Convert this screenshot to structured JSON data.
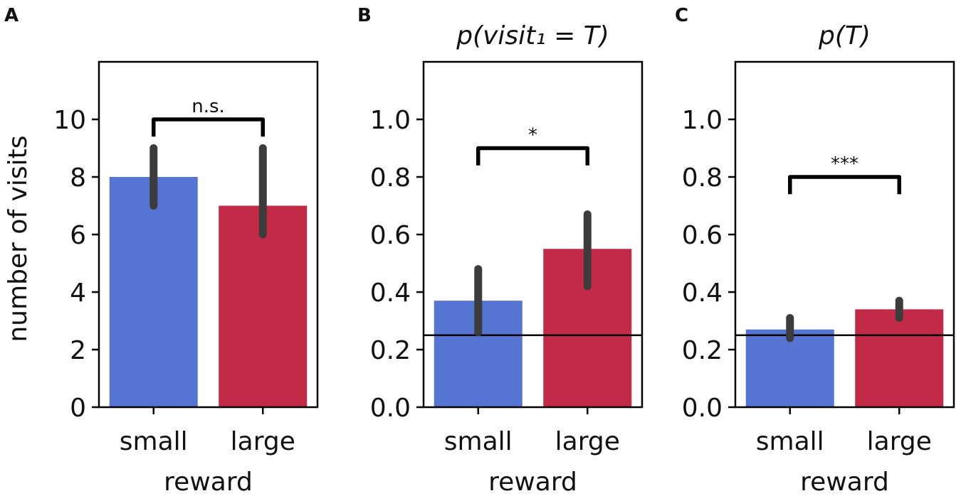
{
  "colors": {
    "small": "#5674d1",
    "large": "#c32a48",
    "err": "#3c3c3c",
    "bracket": "#000000",
    "axis": "#000000"
  },
  "chart_data": [
    {
      "panel": "A",
      "type": "bar",
      "title": "",
      "xlabel": "reward",
      "ylabel": "number of visits",
      "categories": [
        "small",
        "large"
      ],
      "values": [
        8,
        7
      ],
      "error_low": [
        7,
        6
      ],
      "error_high": [
        9,
        9
      ],
      "ylim": [
        0,
        12
      ],
      "yticks": [
        0,
        2,
        4,
        6,
        8,
        10
      ],
      "ytick_labels": [
        "0",
        "2",
        "4",
        "6",
        "8",
        "10"
      ],
      "chance_line": null,
      "significance": {
        "label": "n.s.",
        "y": 10,
        "drop": 0.6
      }
    },
    {
      "panel": "B",
      "type": "bar",
      "title": "p(visit₁ = T)",
      "xlabel": "reward",
      "ylabel": "",
      "categories": [
        "small",
        "large"
      ],
      "values": [
        0.37,
        0.55
      ],
      "error_low": [
        0.26,
        0.42
      ],
      "error_high": [
        0.48,
        0.67
      ],
      "ylim": [
        0,
        1.2
      ],
      "yticks": [
        0,
        0.2,
        0.4,
        0.6,
        0.8,
        1.0
      ],
      "ytick_labels": [
        "0.0",
        "0.2",
        "0.4",
        "0.6",
        "0.8",
        "1.0"
      ],
      "chance_line": 0.25,
      "significance": {
        "label": "*",
        "y": 0.9,
        "drop": 0.06
      }
    },
    {
      "panel": "C",
      "type": "bar",
      "title": "p(T)",
      "xlabel": "reward",
      "ylabel": "",
      "categories": [
        "small",
        "large"
      ],
      "values": [
        0.27,
        0.34
      ],
      "error_low": [
        0.24,
        0.31
      ],
      "error_high": [
        0.31,
        0.37
      ],
      "ylim": [
        0,
        1.2
      ],
      "yticks": [
        0,
        0.2,
        0.4,
        0.6,
        0.8,
        1.0
      ],
      "ytick_labels": [
        "0.0",
        "0.2",
        "0.4",
        "0.6",
        "0.8",
        "1.0"
      ],
      "chance_line": 0.25,
      "significance": {
        "label": "***",
        "y": 0.8,
        "drop": 0.06
      }
    }
  ]
}
